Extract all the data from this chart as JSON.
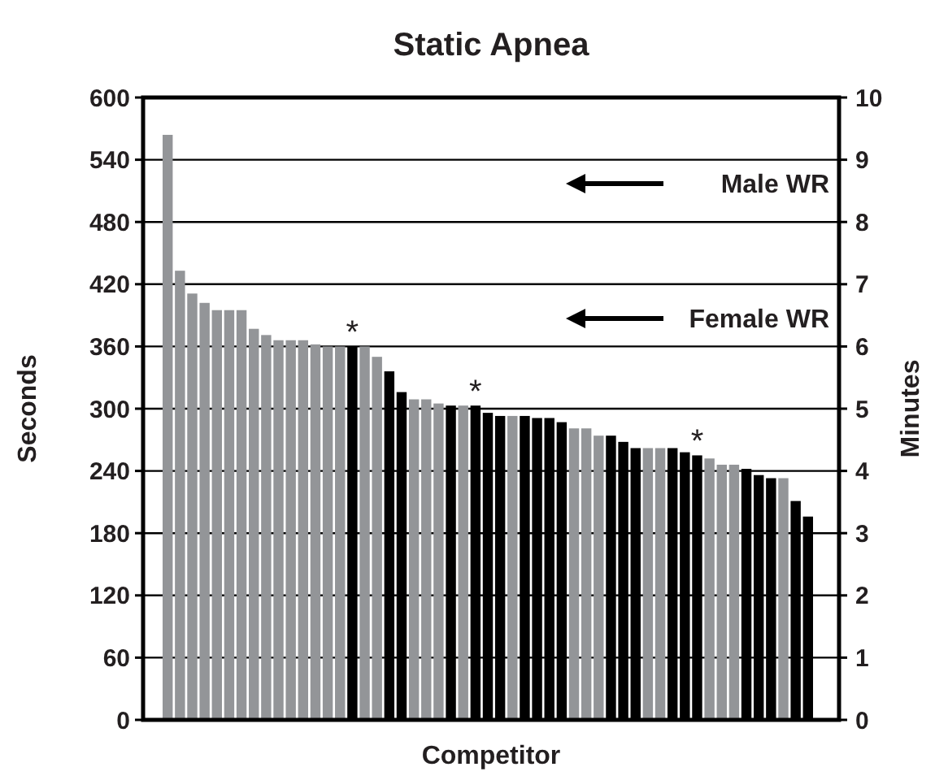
{
  "chart_data": {
    "type": "bar",
    "title": "Static Apnea",
    "xlabel": "Competitor",
    "ylabel": "Seconds",
    "y2label": "Minutes",
    "categories": [
      null,
      null,
      null,
      null,
      null,
      null,
      null,
      null,
      null,
      null,
      null,
      null,
      null,
      null,
      null,
      null,
      null,
      null,
      null,
      null,
      null,
      null,
      null,
      null,
      null,
      null,
      null,
      null,
      null,
      null,
      null,
      null,
      null,
      null,
      null,
      null,
      null,
      null,
      null,
      null,
      null,
      null,
      null,
      null,
      null,
      null,
      null,
      null,
      null,
      null,
      null,
      null,
      null
    ],
    "values": [
      564,
      433,
      411,
      402,
      395,
      395,
      395,
      377,
      371,
      366,
      366,
      366,
      362,
      360,
      360,
      360,
      360,
      350,
      336,
      316,
      309,
      309,
      305,
      303,
      303,
      303,
      296,
      293,
      293,
      293,
      291,
      291,
      287,
      281,
      281,
      274,
      274,
      268,
      262,
      262,
      262,
      262,
      258,
      255,
      252,
      246,
      246,
      242,
      236,
      233,
      233,
      211,
      196
    ],
    "colors": [
      "#939598",
      "#939598",
      "#939598",
      "#939598",
      "#939598",
      "#939598",
      "#939598",
      "#939598",
      "#939598",
      "#939598",
      "#939598",
      "#939598",
      "#939598",
      "#939598",
      "#939598",
      "#000000",
      "#939598",
      "#939598",
      "#000000",
      "#000000",
      "#939598",
      "#939598",
      "#939598",
      "#000000",
      "#939598",
      "#000000",
      "#000000",
      "#000000",
      "#939598",
      "#000000",
      "#000000",
      "#000000",
      "#000000",
      "#939598",
      "#939598",
      "#939598",
      "#000000",
      "#000000",
      "#000000",
      "#939598",
      "#939598",
      "#000000",
      "#000000",
      "#000000",
      "#939598",
      "#939598",
      "#939598",
      "#000000",
      "#000000",
      "#000000",
      "#939598",
      "#000000",
      "#000000"
    ],
    "value_labels": [
      null,
      null,
      null,
      null,
      null,
      null,
      null,
      null,
      null,
      null,
      null,
      null,
      null,
      null,
      null,
      "*",
      null,
      null,
      null,
      null,
      null,
      null,
      null,
      null,
      null,
      "*",
      null,
      null,
      null,
      null,
      null,
      null,
      null,
      null,
      null,
      null,
      null,
      null,
      null,
      null,
      null,
      null,
      null,
      "*",
      null,
      null,
      null,
      null,
      null,
      null,
      null,
      null,
      null
    ],
    "ylim": [
      0,
      600
    ],
    "yticks": [
      0,
      60,
      120,
      180,
      240,
      300,
      360,
      420,
      480,
      540,
      600
    ],
    "y2lim": [
      0,
      10
    ],
    "y2ticks": [
      0,
      1,
      2,
      3,
      4,
      5,
      6,
      7,
      8,
      9,
      10
    ],
    "grid": "y",
    "annotations": [
      "Male WR",
      "Female WR"
    ]
  }
}
